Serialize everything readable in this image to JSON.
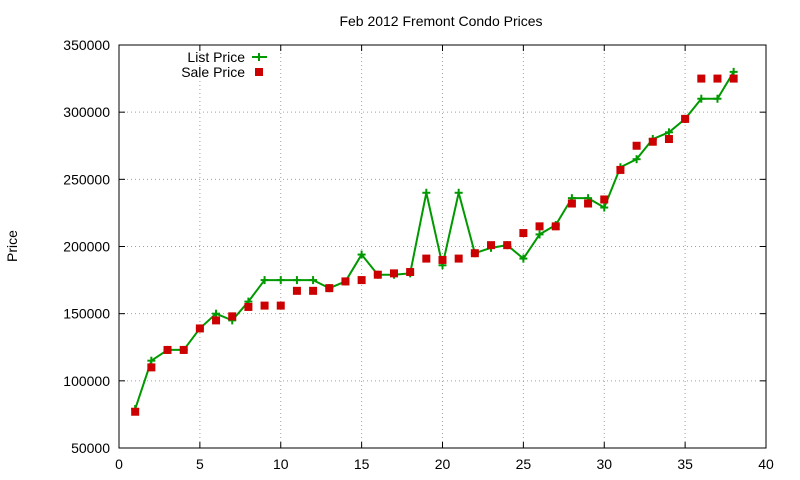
{
  "chart_data": {
    "type": "line",
    "title": "Feb 2012 Fremont Condo Prices",
    "xlabel": "",
    "ylabel": "Price",
    "xlim": [
      0,
      40
    ],
    "ylim": [
      50000,
      350000
    ],
    "x_ticks": [
      0,
      5,
      10,
      15,
      20,
      25,
      30,
      35,
      40
    ],
    "y_ticks": [
      50000,
      100000,
      150000,
      200000,
      250000,
      300000,
      350000
    ],
    "x_tick_labels": [
      "0",
      "5",
      "10",
      "15",
      "20",
      "25",
      "30",
      "35",
      "40"
    ],
    "y_tick_labels": [
      "50000",
      "100000",
      "150000",
      "200000",
      "250000",
      "300000",
      "350000"
    ],
    "grid": true,
    "legend_position": "top-left",
    "series": [
      {
        "name": "List Price",
        "kind": "line-with-plus-markers",
        "color": "#009900",
        "x": [
          1,
          2,
          3,
          4,
          5,
          6,
          7,
          8,
          9,
          10,
          11,
          12,
          13,
          14,
          15,
          16,
          17,
          18,
          19,
          20,
          21,
          22,
          23,
          24,
          25,
          26,
          27,
          28,
          29,
          30,
          31,
          32,
          33,
          34,
          35,
          36,
          37,
          38
        ],
        "values": [
          79000,
          115000,
          123000,
          123000,
          139000,
          150000,
          145000,
          159000,
          175000,
          175000,
          175000,
          175000,
          169000,
          174000,
          194000,
          179000,
          179000,
          180000,
          240000,
          186000,
          240000,
          195000,
          199000,
          201000,
          191000,
          209000,
          216000,
          236000,
          236000,
          229000,
          259000,
          265000,
          280000,
          285000,
          295000,
          310000,
          310000,
          330000
        ]
      },
      {
        "name": "Sale Price",
        "kind": "square-markers",
        "color": "#cc0000",
        "x": [
          1,
          2,
          3,
          4,
          5,
          6,
          7,
          8,
          9,
          10,
          11,
          12,
          13,
          14,
          15,
          16,
          17,
          18,
          19,
          20,
          21,
          22,
          23,
          24,
          25,
          26,
          27,
          28,
          29,
          30,
          31,
          32,
          33,
          34,
          35,
          36,
          37,
          38
        ],
        "values": [
          77000,
          110000,
          123000,
          123000,
          139000,
          145000,
          148000,
          155000,
          156000,
          156000,
          167000,
          167000,
          169000,
          174000,
          175000,
          179000,
          180000,
          181000,
          191000,
          190000,
          191000,
          195000,
          201000,
          201000,
          210000,
          215000,
          215000,
          232000,
          232000,
          235000,
          257000,
          275000,
          278000,
          280000,
          295000,
          325000,
          325000,
          325000
        ]
      }
    ]
  }
}
